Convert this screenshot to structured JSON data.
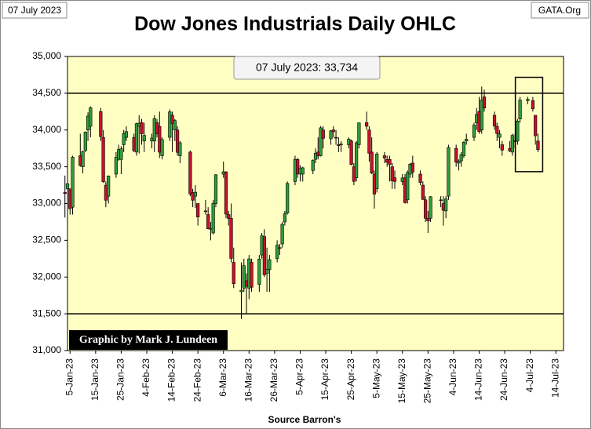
{
  "chart_data": {
    "type": "candlestick",
    "title": "Dow Jones Industrials Daily OHLC",
    "date_label": "07 July 2023",
    "site": "GATA.Org",
    "annotation": "07 July 2023: 33,734",
    "credit": "Graphic by Mark J. Lundeen",
    "xlabel": "Source Barron's",
    "up_color": "#2e9e3a",
    "down_color": "#c8102e",
    "x": [
      "2023-01-03",
      "2023-01-04",
      "2023-01-05",
      "2023-01-06",
      "2023-01-09",
      "2023-01-10",
      "2023-01-11",
      "2023-01-12",
      "2023-01-13",
      "2023-01-17",
      "2023-01-18",
      "2023-01-19",
      "2023-01-20",
      "2023-01-23",
      "2023-01-24",
      "2023-01-25",
      "2023-01-26",
      "2023-01-27",
      "2023-01-30",
      "2023-01-31",
      "2023-02-01",
      "2023-02-02",
      "2023-02-03",
      "2023-02-06",
      "2023-02-07",
      "2023-02-08",
      "2023-02-09",
      "2023-02-10",
      "2023-02-13",
      "2023-02-14",
      "2023-02-15",
      "2023-02-16",
      "2023-02-17",
      "2023-02-21",
      "2023-02-22",
      "2023-02-23",
      "2023-02-24",
      "2023-02-27",
      "2023-02-28",
      "2023-03-01",
      "2023-03-02",
      "2023-03-03",
      "2023-03-06",
      "2023-03-07",
      "2023-03-08",
      "2023-03-09",
      "2023-03-10",
      "2023-03-13",
      "2023-03-14",
      "2023-03-15",
      "2023-03-16",
      "2023-03-17",
      "2023-03-20",
      "2023-03-21",
      "2023-03-22",
      "2023-03-23",
      "2023-03-24",
      "2023-03-27",
      "2023-03-28",
      "2023-03-29",
      "2023-03-30",
      "2023-03-31",
      "2023-04-03",
      "2023-04-04",
      "2023-04-05",
      "2023-04-06",
      "2023-04-10",
      "2023-04-11",
      "2023-04-12",
      "2023-04-13",
      "2023-04-14",
      "2023-04-17",
      "2023-04-18",
      "2023-04-19",
      "2023-04-20",
      "2023-04-21",
      "2023-04-24",
      "2023-04-25",
      "2023-04-26",
      "2023-04-27",
      "2023-04-28",
      "2023-05-01",
      "2023-05-02",
      "2023-05-03",
      "2023-05-04",
      "2023-05-05",
      "2023-05-08",
      "2023-05-09",
      "2023-05-10",
      "2023-05-11",
      "2023-05-12",
      "2023-05-15",
      "2023-05-16",
      "2023-05-17",
      "2023-05-18",
      "2023-05-19",
      "2023-05-22",
      "2023-05-23",
      "2023-05-24",
      "2023-05-25",
      "2023-05-26",
      "2023-05-30",
      "2023-05-31",
      "2023-06-01",
      "2023-06-02",
      "2023-06-05",
      "2023-06-06",
      "2023-06-07",
      "2023-06-08",
      "2023-06-09",
      "2023-06-12",
      "2023-06-13",
      "2023-06-14",
      "2023-06-15",
      "2023-06-16",
      "2023-06-20",
      "2023-06-21",
      "2023-06-22",
      "2023-06-23",
      "2023-06-26",
      "2023-06-27",
      "2023-06-28",
      "2023-06-29",
      "2023-06-30",
      "2023-07-03",
      "2023-07-05",
      "2023-07-06",
      "2023-07-07"
    ],
    "open": [
      33150,
      33200,
      33200,
      32950,
      33650,
      33500,
      33720,
      34000,
      34050,
      34250,
      33900,
      33250,
      33100,
      33400,
      33600,
      33600,
      33800,
      33900,
      33900,
      33700,
      34050,
      34100,
      33850,
      33850,
      33850,
      34100,
      34050,
      33650,
      33900,
      34200,
      34000,
      34000,
      33650,
      33700,
      33150,
      33100,
      33000,
      32900,
      32850,
      32650,
      32600,
      33000,
      33400,
      33430,
      32850,
      32800,
      32200,
      31800,
      31850,
      31950,
      31850,
      32200,
      31900,
      32300,
      32550,
      32050,
      32100,
      32250,
      32400,
      32450,
      32750,
      32870,
      33300,
      33600,
      33400,
      33400,
      33450,
      33600,
      33700,
      33650,
      34000,
      33880,
      34000,
      33900,
      33800,
      33800,
      33800,
      33850,
      33500,
      33350,
      33800,
      34100,
      34000,
      33700,
      33400,
      33200,
      33650,
      33600,
      33600,
      33500,
      33350,
      33300,
      33350,
      33050,
      33400,
      33550,
      33400,
      33250,
      33050,
      32800,
      32800,
      33050,
      33000,
      32900,
      33100,
      33750,
      33550,
      33580,
      33650,
      33850,
      33900,
      34100,
      34250,
      34000,
      34450,
      34200,
      34050,
      33900,
      33800,
      33750,
      33700,
      33850,
      33850,
      34150,
      34400,
      34400,
      34200,
      33850
    ],
    "high": [
      33380,
      33400,
      33200,
      33650,
      33950,
      33720,
      33980,
      34240,
      34320,
      34300,
      34000,
      33300,
      33380,
      33700,
      33800,
      33780,
      34000,
      34050,
      33950,
      34100,
      34200,
      34150,
      34100,
      33950,
      34200,
      34150,
      34250,
      33900,
      34280,
      34250,
      34150,
      34050,
      33850,
      33720,
      33200,
      33250,
      33000,
      33050,
      32950,
      32750,
      33050,
      33400,
      33570,
      33440,
      32900,
      33000,
      32400,
      32200,
      32250,
      32050,
      32300,
      32250,
      32300,
      32600,
      32650,
      32400,
      32300,
      32500,
      32450,
      32750,
      32900,
      33300,
      33650,
      33620,
      33520,
      33500,
      33600,
      33750,
      33900,
      34050,
      34050,
      34000,
      34050,
      34000,
      33900,
      33850,
      33900,
      33870,
      33550,
      33850,
      34100,
      34250,
      34050,
      33900,
      33450,
      33700,
      33700,
      33650,
      33650,
      33550,
      33450,
      33400,
      33400,
      33450,
      33550,
      33650,
      33450,
      33300,
      33100,
      32900,
      33100,
      33100,
      33100,
      33100,
      33800,
      33800,
      33600,
      33700,
      33850,
      33950,
      34100,
      34300,
      34450,
      34590,
      34550,
      34250,
      34100,
      34000,
      33850,
      33850,
      33950,
      33950,
      34150,
      34450,
      34450,
      34450,
      34200,
      33950
    ],
    "low": [
      32810,
      33010,
      32850,
      32850,
      33500,
      33410,
      33700,
      33850,
      33900,
      33850,
      33280,
      32950,
      33000,
      33350,
      33580,
      33400,
      33700,
      33850,
      33700,
      33650,
      33680,
      33800,
      33700,
      33750,
      33700,
      33900,
      33620,
      33600,
      33850,
      33700,
      33850,
      33650,
      33550,
      33100,
      32950,
      32940,
      32700,
      32850,
      32650,
      32500,
      32580,
      32950,
      33350,
      32800,
      32700,
      32200,
      31850,
      31430,
      31800,
      31500,
      31700,
      31800,
      31800,
      32250,
      32000,
      31800,
      31800,
      32200,
      32300,
      32400,
      32700,
      32850,
      33250,
      33350,
      33300,
      33300,
      33400,
      33550,
      33600,
      33640,
      33750,
      33800,
      33900,
      33800,
      33700,
      33700,
      33750,
      33520,
      33250,
      33300,
      33750,
      34000,
      33570,
      33400,
      32930,
      33150,
      33550,
      33500,
      33300,
      33200,
      33200,
      33250,
      33000,
      33000,
      33350,
      33350,
      33250,
      33050,
      32750,
      32600,
      32750,
      32950,
      32700,
      32800,
      33050,
      33500,
      33450,
      33500,
      33620,
      33800,
      33850,
      34000,
      33950,
      33950,
      34250,
      34000,
      33850,
      33750,
      33650,
      33700,
      33650,
      33750,
      33800,
      34100,
      34350,
      34250,
      33800,
      33700
    ],
    "close": [
      33136,
      33270,
      32930,
      33631,
      33517,
      33704,
      33973,
      34190,
      34303,
      33910,
      33297,
      33045,
      33375,
      33630,
      33734,
      33744,
      33950,
      33978,
      33717,
      34086,
      34092,
      33949,
      33926,
      33891,
      34156,
      33949,
      33699,
      33869,
      34246,
      34089,
      34128,
      33697,
      33826,
      33130,
      33045,
      33154,
      32817,
      32889,
      32657,
      32662,
      33004,
      33391,
      33432,
      32856,
      32798,
      32254,
      31910,
      31820,
      32155,
      31875,
      32247,
      31862,
      32245,
      32561,
      32031,
      32106,
      32238,
      32433,
      32395,
      32718,
      32860,
      33274,
      33601,
      33403,
      33483,
      33486,
      33587,
      33685,
      33647,
      34030,
      33887,
      33988,
      33977,
      33897,
      33787,
      33809,
      33876,
      33531,
      33302,
      33826,
      34098,
      34051,
      33684,
      33414,
      33128,
      33674,
      33619,
      33562,
      33531,
      33309,
      33301,
      33348,
      33012,
      33420,
      33535,
      33427,
      33286,
      33056,
      32800,
      32765,
      33093,
      33043,
      32908,
      33061,
      33762,
      33563,
      33573,
      33665,
      33833,
      33876,
      34066,
      34212,
      33979,
      34408,
      34299,
      34053,
      33952,
      33946,
      33727,
      33714,
      33927,
      33853,
      34122,
      34408,
      34418,
      34288,
      33922,
      33734
    ],
    "ylim": [
      31000,
      35000
    ],
    "yticks": [
      {
        "value": 31000,
        "label": "31,000"
      },
      {
        "value": 31500,
        "label": "31,500"
      },
      {
        "value": 32000,
        "label": "32,000"
      },
      {
        "value": 32500,
        "label": "32,500"
      },
      {
        "value": 33000,
        "label": "33,000"
      },
      {
        "value": 33500,
        "label": "33,500"
      },
      {
        "value": 34000,
        "label": "34,000"
      },
      {
        "value": 34500,
        "label": "34,500"
      },
      {
        "value": 35000,
        "label": "35,000"
      }
    ],
    "reference_lines": [
      34500,
      31500
    ],
    "xlim": [
      "2023-01-04",
      "2023-07-17"
    ],
    "xticks": [
      {
        "value": "2023-01-05",
        "label": "5-Jan-23"
      },
      {
        "value": "2023-01-15",
        "label": "15-Jan-23"
      },
      {
        "value": "2023-01-25",
        "label": "25-Jan-23"
      },
      {
        "value": "2023-02-04",
        "label": "4-Feb-23"
      },
      {
        "value": "2023-02-14",
        "label": "14-Feb-23"
      },
      {
        "value": "2023-02-24",
        "label": "24-Feb-23"
      },
      {
        "value": "2023-03-06",
        "label": "6-Mar-23"
      },
      {
        "value": "2023-03-16",
        "label": "16-Mar-23"
      },
      {
        "value": "2023-03-26",
        "label": "26-Mar-23"
      },
      {
        "value": "2023-04-05",
        "label": "5-Apr-23"
      },
      {
        "value": "2023-04-15",
        "label": "15-Apr-23"
      },
      {
        "value": "2023-04-25",
        "label": "25-Apr-23"
      },
      {
        "value": "2023-05-05",
        "label": "5-May-23"
      },
      {
        "value": "2023-05-15",
        "label": "15-May-23"
      },
      {
        "value": "2023-05-25",
        "label": "25-May-23"
      },
      {
        "value": "2023-06-04",
        "label": "4-Jun-23"
      },
      {
        "value": "2023-06-14",
        "label": "14-Jun-23"
      },
      {
        "value": "2023-06-24",
        "label": "24-Jun-23"
      },
      {
        "value": "2023-07-04",
        "label": "4-Jul-23"
      },
      {
        "value": "2023-07-14",
        "label": "14-Jul-23"
      }
    ]
  }
}
